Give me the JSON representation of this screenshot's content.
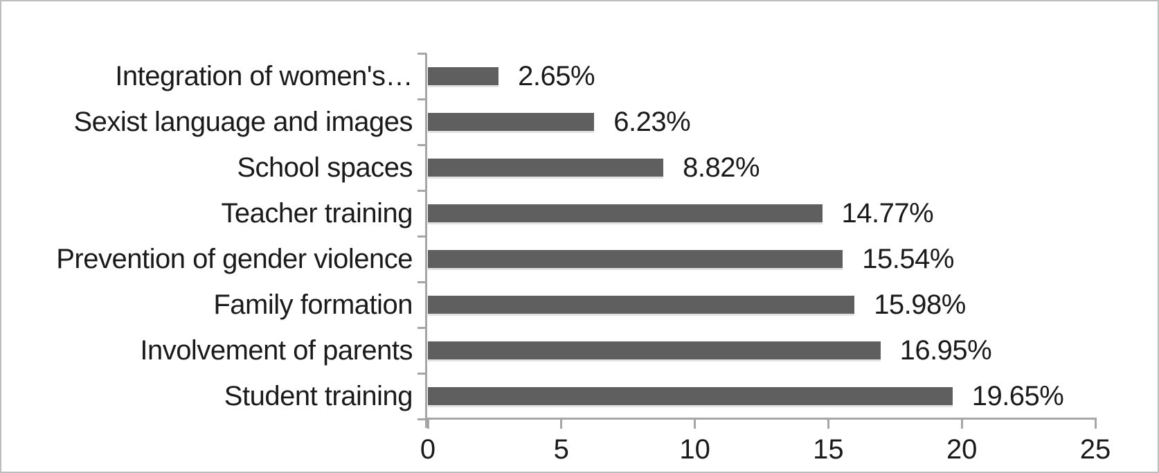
{
  "colors": {
    "bar_fill": "#5f5f5f",
    "axis_line": "#a6a6a6",
    "text": "#1a1a1a",
    "frame_border": "#bdbdbd",
    "background": "#ffffff"
  },
  "chart_data": {
    "type": "bar",
    "orientation": "horizontal",
    "title": "",
    "xlabel": "",
    "ylabel": "",
    "xlim": [
      0,
      25
    ],
    "x_ticks": [
      "0",
      "5",
      "10",
      "15",
      "20",
      "25"
    ],
    "grid": false,
    "legend": false,
    "categories": [
      "Integration of women's…",
      "Sexist language and images",
      "School spaces",
      "Teacher training",
      "Prevention of gender violence",
      "Family formation",
      "Involvement of parents",
      "Student training"
    ],
    "values": [
      2.65,
      6.23,
      8.82,
      14.77,
      15.54,
      15.98,
      16.95,
      19.65
    ],
    "data_labels": [
      "2.65%",
      "6.23%",
      "8.82%",
      "14.77%",
      "15.54%",
      "15.98%",
      "16.95%",
      "19.65%"
    ]
  }
}
